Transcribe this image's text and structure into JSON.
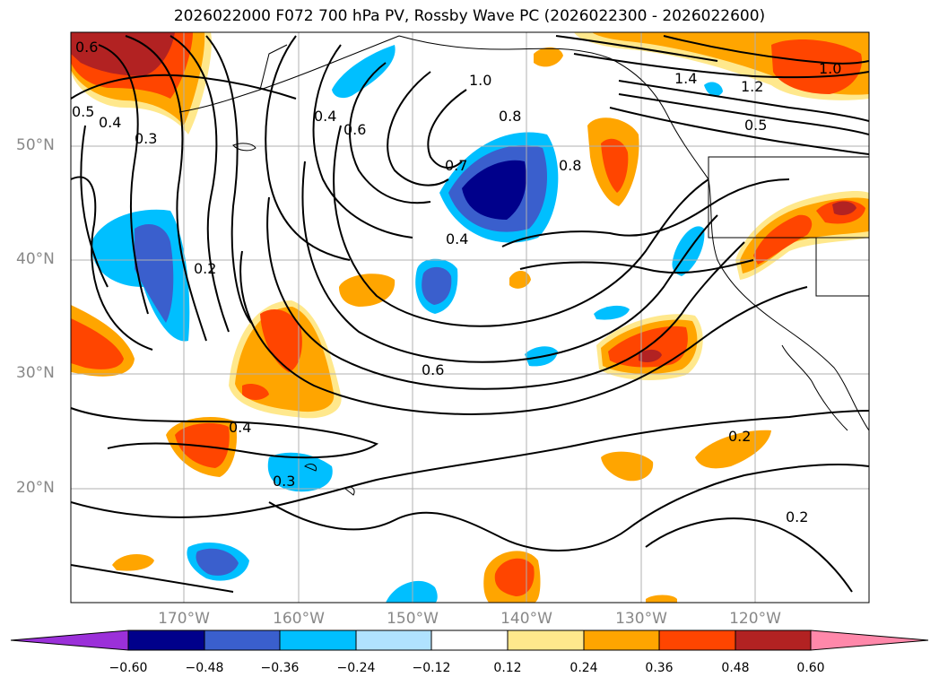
{
  "title": "2026022000 F072 700 hPa PV, Rossby Wave PC (2026022300 - 2026022600)",
  "map": {
    "lat_labels": [
      "50°N",
      "40°N",
      "30°N",
      "20°N"
    ],
    "lon_labels": [
      "170°W",
      "160°W",
      "150°W",
      "140°W",
      "130°W",
      "120°W"
    ],
    "contour_labels": [
      "0.6",
      "0.5",
      "0.4",
      "0.3",
      "0.2",
      "0.4",
      "0.6",
      "1.0",
      "0.8",
      "0.7",
      "0.8",
      "1.4",
      "1.2",
      "1.0",
      "0.5",
      "0.4",
      "0.6",
      "0.4",
      "0.3",
      "0.2",
      "0.2"
    ],
    "contour_color": "#000000",
    "gridline_color": "#b0b0b0",
    "coastline_color": "#000000"
  },
  "colorbar": {
    "ticks": [
      "−0.60",
      "−0.48",
      "−0.36",
      "−0.24",
      "−0.12",
      "0.12",
      "0.24",
      "0.36",
      "0.48",
      "0.60"
    ],
    "colors": [
      "#9b30d9",
      "#00008b",
      "#3a5fcd",
      "#00bfff",
      "#b0e2ff",
      "#ffffff",
      "#ffe88c",
      "#ffa500",
      "#ff4500",
      "#b22222",
      "#ff88aa"
    ]
  }
}
